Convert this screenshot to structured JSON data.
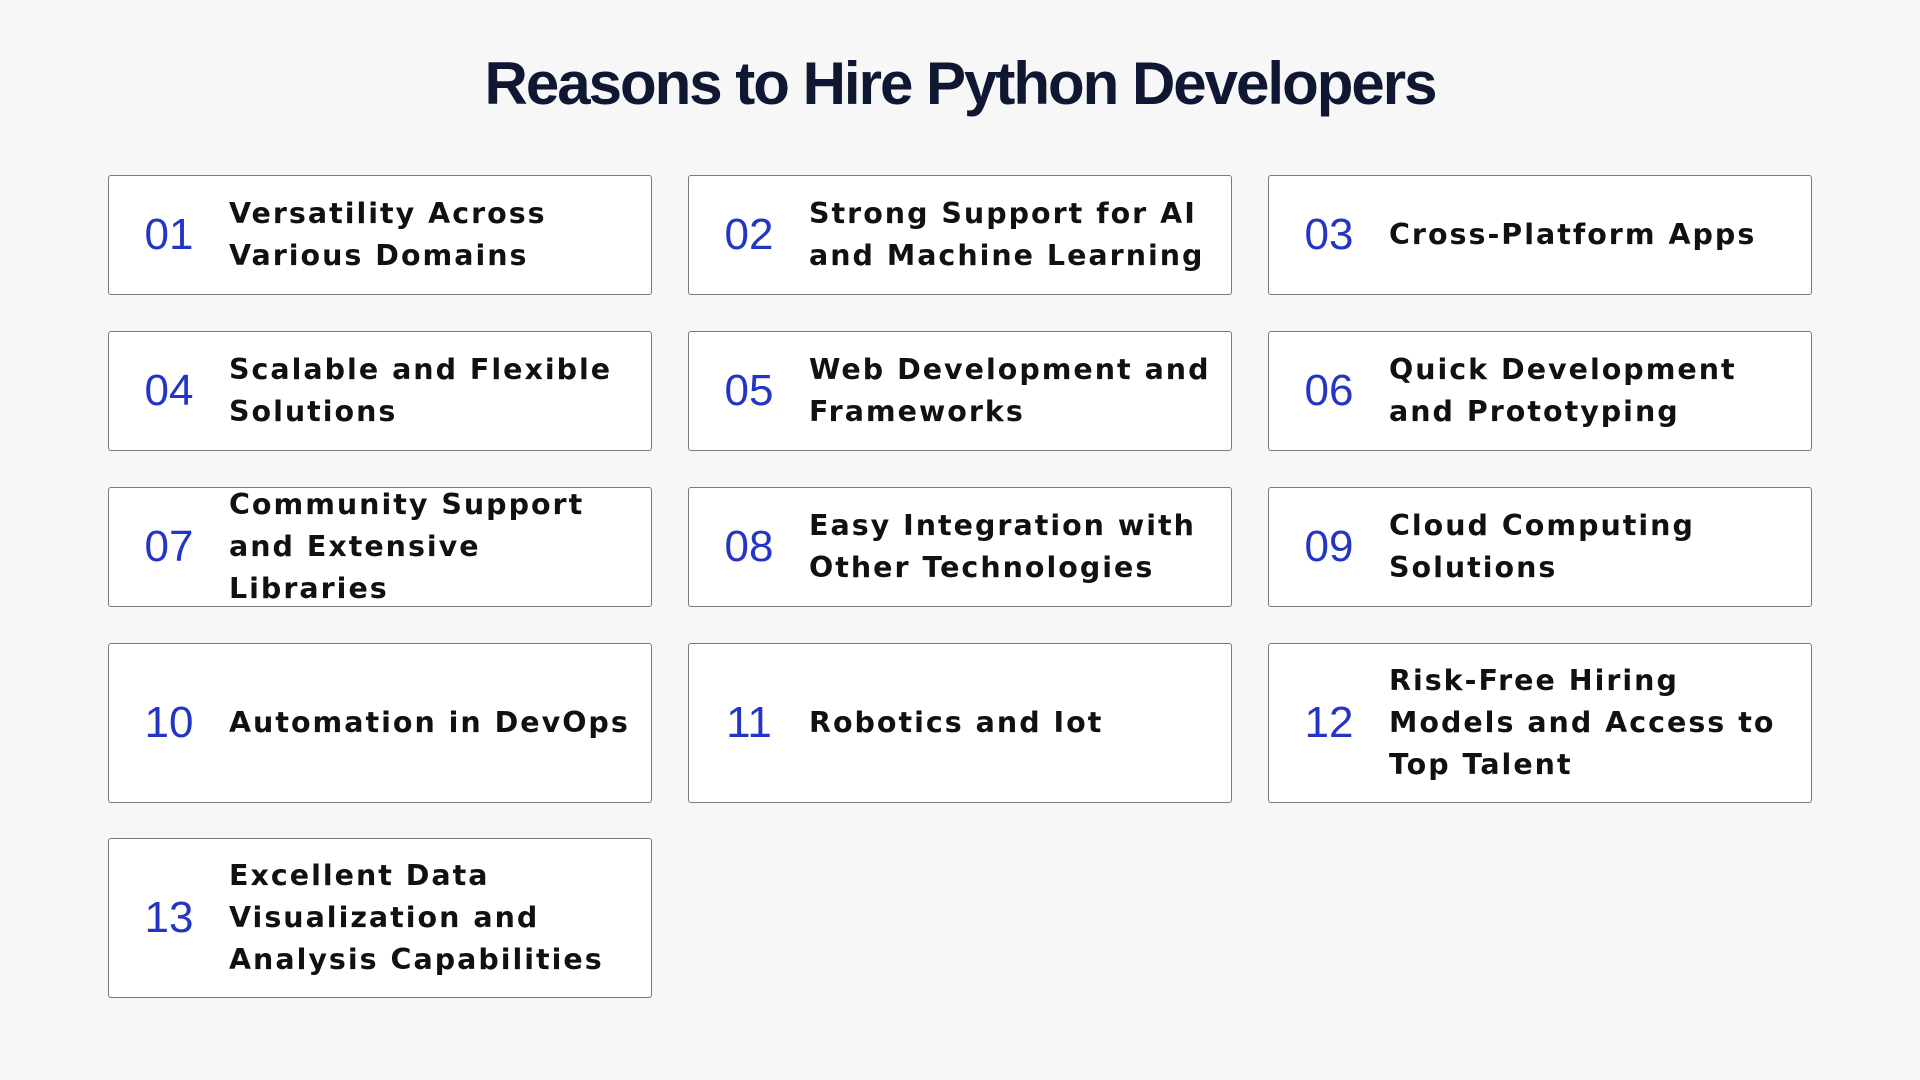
{
  "title": "Reasons to Hire Python Developers",
  "colors": {
    "accent": "#2435c6",
    "text": "#111111",
    "title": "#0f1733",
    "background": "#f7f7f7",
    "card_border": "#7a7a7a"
  },
  "items": [
    {
      "number": "01",
      "text": "Versatility Across Various Domains"
    },
    {
      "number": "02",
      "text": "Strong Support for AI and Machine Learning"
    },
    {
      "number": "03",
      "text": "Cross-Platform Apps"
    },
    {
      "number": "04",
      "text": "Scalable and Flexible Solutions"
    },
    {
      "number": "05",
      "text": "Web Development and Frameworks"
    },
    {
      "number": "06",
      "text": "Quick Development and Prototyping"
    },
    {
      "number": "07",
      "text": "Community Support and Extensive Libraries"
    },
    {
      "number": "08",
      "text": "Easy Integration with Other Technologies"
    },
    {
      "number": "09",
      "text": "Cloud Computing Solutions"
    },
    {
      "number": "10",
      "text": "Automation in DevOps"
    },
    {
      "number": "11",
      "text": "Robotics and Iot"
    },
    {
      "number": "12",
      "text": "Risk-Free Hiring Models and Access to Top Talent"
    },
    {
      "number": "13",
      "text": "Excellent Data Visualization and Analysis Capabilities"
    }
  ]
}
